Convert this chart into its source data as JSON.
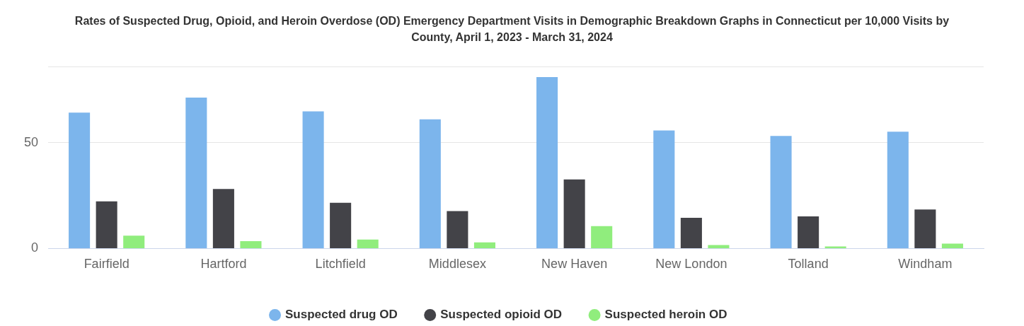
{
  "chart_data": {
    "type": "bar",
    "title": "Rates of Suspected Drug, Opioid, and Heroin Overdose (OD) Emergency Department Visits in Demographic Breakdown Graphs in Connecticut per 10,000 Visits by County, April 1, 2023 - March 31, 2024",
    "categories": [
      "Fairfield",
      "Hartford",
      "Litchfield",
      "Middlesex",
      "New Haven",
      "New London",
      "Tolland",
      "Windham"
    ],
    "series": [
      {
        "name": "Suspected drug OD",
        "color": "#7cb5ec",
        "values": [
          64.2,
          71.3,
          64.8,
          61.0,
          81.0,
          55.8,
          53.2,
          55.2
        ]
      },
      {
        "name": "Suspected opioid OD",
        "color": "#434348",
        "values": [
          22.3,
          28.1,
          21.6,
          17.7,
          32.6,
          14.5,
          15.2,
          18.4
        ]
      },
      {
        "name": "Suspected heroin OD",
        "color": "#90ed7d",
        "values": [
          6.1,
          3.5,
          4.2,
          2.9,
          10.6,
          1.6,
          1.0,
          2.3
        ]
      }
    ],
    "ylim": [
      0,
      86
    ],
    "yticks": [
      0,
      50,
      {
        "value": 86,
        "label": null
      }
    ],
    "grid": "y",
    "legend": "bottom"
  }
}
